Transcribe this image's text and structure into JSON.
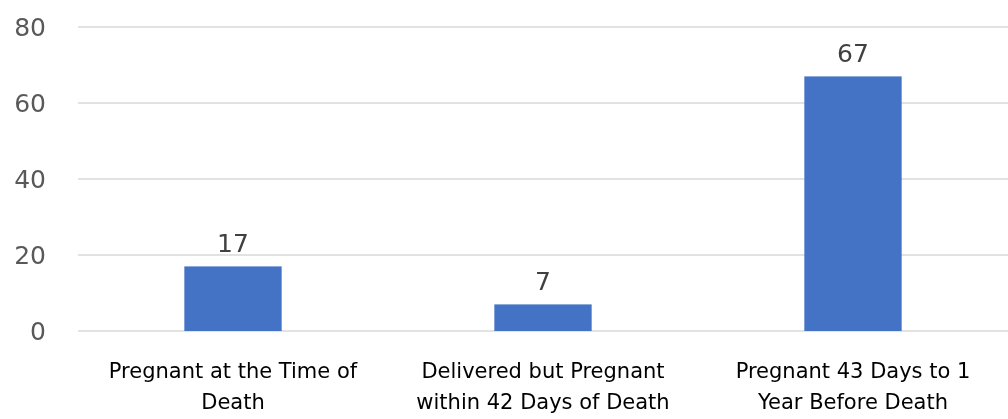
{
  "chart_data": {
    "type": "bar",
    "categories": [
      "Pregnant at the Time of Death",
      "Delivered but Pregnant within 42 Days of Death",
      "Pregnant 43 Days to 1 Year Before Death"
    ],
    "values": [
      17,
      7,
      67
    ],
    "color": "#4472c4",
    "ylim": [
      0,
      80
    ],
    "yticks": [
      0,
      20,
      40,
      60,
      80
    ],
    "grid": "y",
    "data_labels": true
  }
}
